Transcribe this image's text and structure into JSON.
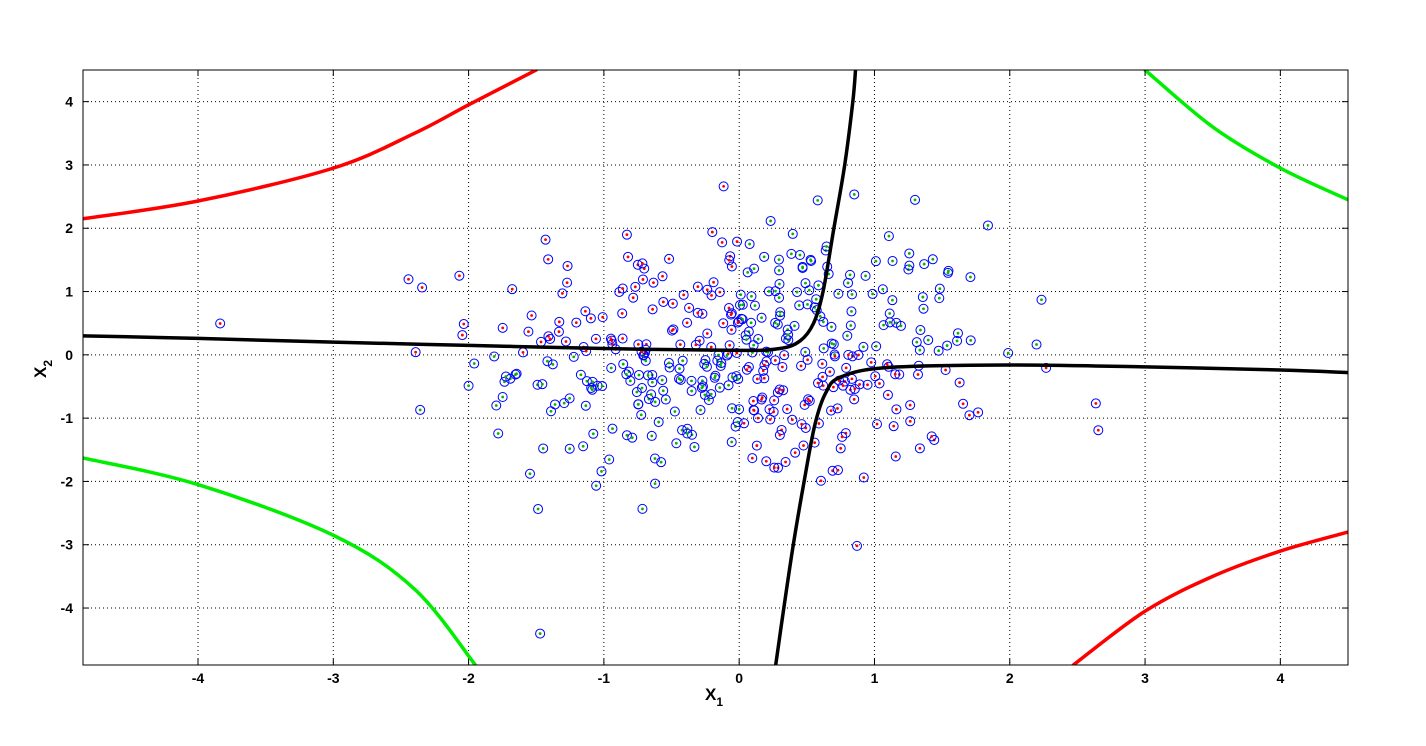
{
  "chart_data": {
    "type": "scatter",
    "title": "",
    "xlabel": "X",
    "xlabel_sub": "1",
    "ylabel": "X",
    "ylabel_sub": "2",
    "xlim": [
      -4.85,
      4.5
    ],
    "ylim": [
      -4.9,
      4.5
    ],
    "xticks": [
      -4,
      -3,
      -2,
      -1,
      0,
      1,
      2,
      3,
      4
    ],
    "yticks": [
      4,
      3,
      2,
      1,
      0,
      -1,
      -2,
      -3,
      -4
    ],
    "xtick_labels": [
      "-4",
      "-3",
      "-2",
      "-1",
      "0",
      "1",
      "2",
      "3",
      "4"
    ],
    "ytick_labels": [
      "4",
      "3",
      "2",
      "1",
      "0",
      "-1",
      "-2",
      "-3",
      "-4"
    ],
    "grid": true,
    "grid_style": "dotted",
    "point_marker_color": "#0000ff",
    "point_center_colors": [
      "#ff0000",
      "#00bb00"
    ],
    "series": [
      {
        "color": "#000000",
        "kind": "curve",
        "points": [
          [
            -4.85,
            0.3
          ],
          [
            -4,
            0.26
          ],
          [
            -3,
            0.2
          ],
          [
            -2,
            0.15
          ],
          [
            -1,
            0.1
          ],
          [
            0,
            0.07
          ],
          [
            0.3,
            0.1
          ],
          [
            0.45,
            0.22
          ],
          [
            0.55,
            0.5
          ],
          [
            0.62,
            1
          ],
          [
            0.7,
            2
          ],
          [
            0.78,
            3
          ],
          [
            0.84,
            4
          ],
          [
            0.86,
            4.5
          ]
        ]
      },
      {
        "color": "#000000",
        "kind": "curve",
        "points": [
          [
            0.27,
            -4.9
          ],
          [
            0.33,
            -4
          ],
          [
            0.4,
            -3
          ],
          [
            0.48,
            -2
          ],
          [
            0.56,
            -1.1
          ],
          [
            0.64,
            -0.6
          ],
          [
            0.75,
            -0.35
          ],
          [
            1.1,
            -0.2
          ],
          [
            2,
            -0.16
          ],
          [
            3,
            -0.19
          ],
          [
            4,
            -0.24
          ],
          [
            4.5,
            -0.28
          ]
        ]
      },
      {
        "color": "#ff0000",
        "kind": "curve",
        "points": [
          [
            -4.85,
            2.15
          ],
          [
            -4,
            2.43
          ],
          [
            -3,
            2.95
          ],
          [
            -2.4,
            3.5
          ],
          [
            -2,
            3.95
          ],
          [
            -1.5,
            4.5
          ]
        ]
      },
      {
        "color": "#ff0000",
        "kind": "curve",
        "points": [
          [
            2.47,
            -4.9
          ],
          [
            3,
            -4.05
          ],
          [
            3.5,
            -3.5
          ],
          [
            4,
            -3.1
          ],
          [
            4.5,
            -2.8
          ]
        ]
      },
      {
        "color": "#00ee00",
        "kind": "curve",
        "points": [
          [
            -4.85,
            -1.63
          ],
          [
            -4,
            -2.05
          ],
          [
            -3,
            -2.85
          ],
          [
            -2.4,
            -3.7
          ],
          [
            -1.95,
            -4.9
          ]
        ]
      },
      {
        "color": "#00ee00",
        "kind": "curve",
        "points": [
          [
            3.0,
            4.5
          ],
          [
            3.5,
            3.6
          ],
          [
            4,
            2.95
          ],
          [
            4.5,
            2.45
          ]
        ]
      }
    ],
    "points_count": 420
  }
}
